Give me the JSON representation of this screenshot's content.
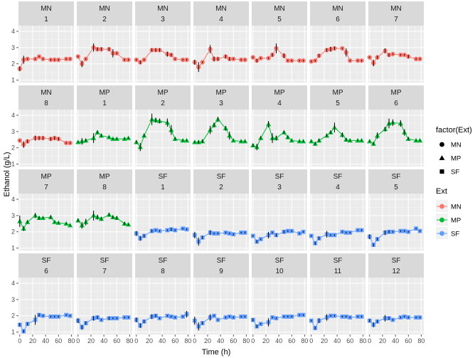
{
  "chart_data": {
    "type": "line",
    "xlabel": "Time (h)",
    "ylabel": "Ethanol (g/L)",
    "xlim": [
      -2,
      84
    ],
    "ylim": [
      0.85,
      4.35
    ],
    "xticks": [
      0,
      20,
      40,
      60,
      80
    ],
    "xtick_labels": [
      "0",
      "20",
      "40",
      "60",
      "80"
    ],
    "yticks": [
      1,
      2,
      3,
      4
    ],
    "ytick_labels": [
      "1",
      "2",
      "3",
      "4"
    ],
    "grid": true,
    "x": [
      0,
      6,
      12,
      24,
      30,
      36,
      48,
      54,
      60,
      72,
      78
    ],
    "ext_colors": {
      "MN": "#F8766D",
      "MP": "#00BA38",
      "SF": "#619CFF"
    },
    "ext_shapes": {
      "MN": "circle",
      "MP": "triangle",
      "SF": "square"
    },
    "legend": {
      "placement": "right",
      "shape_title": "factor(Ext)",
      "color_title": "Ext",
      "entries": [
        "MN",
        "MP",
        "SF"
      ]
    },
    "panels": [
      {
        "ext": "MN",
        "rep": "1",
        "y": [
          1.7,
          2.25,
          2.3,
          2.3,
          2.45,
          2.3,
          2.25,
          2.25,
          2.25,
          2.3,
          2.3
        ],
        "err": [
          0.15,
          0.25,
          0.05,
          0.05,
          0.05,
          0.05,
          0.05,
          0.05,
          0.05,
          0.05,
          0.05
        ]
      },
      {
        "ext": "MN",
        "rep": "2",
        "y": [
          2.45,
          2.0,
          2.3,
          3.0,
          2.9,
          2.9,
          2.9,
          2.65,
          2.65,
          2.25,
          2.25
        ],
        "err": [
          0.05,
          0.2,
          0.05,
          0.25,
          0.1,
          0.1,
          0.1,
          0.25,
          0.05,
          0.05,
          0.05
        ]
      },
      {
        "ext": "MN",
        "rep": "3",
        "y": [
          2.25,
          2.1,
          2.25,
          2.85,
          2.85,
          2.85,
          2.6,
          2.55,
          2.3,
          2.25,
          2.25
        ],
        "err": [
          0.05,
          0.1,
          0.05,
          0.1,
          0.1,
          0.1,
          0.15,
          0.1,
          0.05,
          0.05,
          0.05
        ]
      },
      {
        "ext": "MN",
        "rep": "4",
        "y": [
          2.1,
          1.8,
          2.1,
          2.9,
          2.3,
          2.3,
          2.45,
          2.3,
          2.3,
          2.25,
          2.25
        ],
        "err": [
          0.15,
          0.3,
          0.05,
          0.25,
          0.15,
          0.1,
          0.1,
          0.1,
          0.05,
          0.05,
          0.05
        ]
      },
      {
        "ext": "MN",
        "rep": "5",
        "y": [
          2.4,
          2.2,
          2.35,
          2.35,
          2.55,
          2.95,
          2.5,
          2.2,
          2.2,
          2.2,
          2.2
        ],
        "err": [
          0.05,
          0.1,
          0.05,
          0.05,
          0.1,
          0.3,
          0.15,
          0.05,
          0.05,
          0.05,
          0.05
        ]
      },
      {
        "ext": "MN",
        "rep": "6",
        "y": [
          2.15,
          2.2,
          2.5,
          2.85,
          2.9,
          2.95,
          2.95,
          2.7,
          2.2,
          2.2,
          2.2
        ],
        "err": [
          0.05,
          0.05,
          0.1,
          0.1,
          0.15,
          0.1,
          0.05,
          0.25,
          0.05,
          0.05,
          0.05
        ]
      },
      {
        "ext": "MN",
        "rep": "7",
        "y": [
          2.4,
          2.05,
          2.4,
          2.8,
          2.55,
          2.6,
          2.55,
          2.55,
          2.45,
          2.3,
          2.3
        ],
        "err": [
          0.05,
          0.2,
          0.1,
          0.15,
          0.1,
          0.05,
          0.05,
          0.05,
          0.1,
          0.05,
          0.05
        ]
      },
      {
        "ext": "MN",
        "rep": "8",
        "y": [
          2.45,
          2.2,
          2.4,
          2.6,
          2.6,
          2.6,
          2.55,
          2.6,
          2.55,
          2.3,
          2.3
        ],
        "err": [
          0.05,
          0.2,
          0.1,
          0.15,
          0.1,
          0.1,
          0.1,
          0.1,
          0.1,
          0.05,
          0.05
        ]
      },
      {
        "ext": "MP",
        "rep": "1",
        "y": [
          2.35,
          2.4,
          2.45,
          2.6,
          2.95,
          2.75,
          2.65,
          2.55,
          2.55,
          2.55,
          2.6
        ],
        "err": [
          0.05,
          0.2,
          0.1,
          0.3,
          0.1,
          0.1,
          0.05,
          0.05,
          0.05,
          0.05,
          0.05
        ]
      },
      {
        "ext": "MP",
        "rep": "2",
        "y": [
          2.35,
          2.05,
          2.75,
          3.75,
          3.7,
          3.65,
          3.55,
          3.1,
          2.55,
          2.45,
          2.45
        ],
        "err": [
          0.1,
          0.25,
          0.1,
          0.35,
          0.15,
          0.15,
          0.25,
          0.3,
          0.1,
          0.05,
          0.05
        ]
      },
      {
        "ext": "MP",
        "rep": "3",
        "y": [
          2.35,
          2.35,
          2.4,
          3.1,
          3.4,
          3.75,
          3.2,
          2.75,
          2.45,
          2.4,
          2.4
        ],
        "err": [
          0.05,
          0.1,
          0.1,
          0.25,
          0.15,
          0.15,
          0.15,
          0.25,
          0.05,
          0.05,
          0.05
        ]
      },
      {
        "ext": "MP",
        "rep": "4",
        "y": [
          2.15,
          2.05,
          2.6,
          3.45,
          2.6,
          2.6,
          2.95,
          2.65,
          2.45,
          2.4,
          2.4
        ],
        "err": [
          0.1,
          0.2,
          0.1,
          0.2,
          0.3,
          0.15,
          0.1,
          0.1,
          0.05,
          0.05,
          0.05
        ]
      },
      {
        "ext": "MP",
        "rep": "5",
        "y": [
          2.4,
          2.25,
          2.45,
          2.75,
          2.95,
          3.25,
          2.8,
          2.5,
          2.45,
          2.45,
          2.45
        ],
        "err": [
          0.05,
          0.1,
          0.1,
          0.1,
          0.1,
          0.3,
          0.15,
          0.1,
          0.05,
          0.05,
          0.05
        ]
      },
      {
        "ext": "MP",
        "rep": "6",
        "y": [
          2.4,
          2.25,
          2.75,
          3.15,
          3.5,
          3.55,
          3.5,
          2.95,
          2.55,
          2.45,
          2.45
        ],
        "err": [
          0.05,
          0.1,
          0.2,
          0.15,
          0.3,
          0.2,
          0.2,
          0.2,
          0.1,
          0.05,
          0.05
        ]
      },
      {
        "ext": "MP",
        "rep": "7",
        "y": [
          2.65,
          2.2,
          2.6,
          3.0,
          2.85,
          2.85,
          2.9,
          2.6,
          2.55,
          2.5,
          2.4
        ],
        "err": [
          0.35,
          0.15,
          0.1,
          0.15,
          0.1,
          0.05,
          0.1,
          0.05,
          0.05,
          0.05,
          0.05
        ]
      },
      {
        "ext": "MP",
        "rep": "8",
        "y": [
          2.7,
          2.4,
          2.6,
          3.0,
          2.9,
          2.8,
          3.05,
          2.9,
          2.85,
          2.5,
          2.45
        ],
        "err": [
          0.1,
          0.2,
          0.2,
          0.3,
          0.15,
          0.1,
          0.1,
          0.1,
          0.1,
          0.1,
          0.05
        ]
      },
      {
        "ext": "SF",
        "rep": "1",
        "y": [
          1.9,
          1.6,
          1.75,
          2.05,
          2.1,
          2.05,
          2.1,
          2.15,
          2.1,
          2.2,
          2.15
        ],
        "err": [
          0.15,
          0.15,
          0.1,
          0.1,
          0.05,
          0.05,
          0.05,
          0.1,
          0.05,
          0.05,
          0.05
        ]
      },
      {
        "ext": "SF",
        "rep": "2",
        "y": [
          1.8,
          1.4,
          1.65,
          1.95,
          1.9,
          1.9,
          1.95,
          1.9,
          1.85,
          1.95,
          1.95
        ],
        "err": [
          0.2,
          0.25,
          0.1,
          0.15,
          0.05,
          0.05,
          0.05,
          0.05,
          0.05,
          0.05,
          0.05
        ]
      },
      {
        "ext": "SF",
        "rep": "3",
        "y": [
          1.75,
          1.4,
          1.55,
          1.8,
          1.95,
          1.8,
          2.0,
          2.05,
          2.05,
          1.9,
          2.0
        ],
        "err": [
          0.05,
          0.1,
          0.05,
          0.2,
          0.05,
          0.1,
          0.1,
          0.05,
          0.05,
          0.05,
          0.05
        ]
      },
      {
        "ext": "SF",
        "rep": "4",
        "y": [
          1.75,
          1.3,
          1.6,
          1.85,
          1.8,
          1.8,
          2.0,
          1.95,
          1.95,
          2.1,
          2.1
        ],
        "err": [
          0.05,
          0.1,
          0.1,
          0.2,
          0.05,
          0.05,
          0.05,
          0.05,
          0.05,
          0.05,
          0.05
        ]
      },
      {
        "ext": "SF",
        "rep": "5",
        "y": [
          1.7,
          1.2,
          1.55,
          1.95,
          2.0,
          2.0,
          2.05,
          2.05,
          2.0,
          2.2,
          2.05
        ],
        "err": [
          0.15,
          0.1,
          0.1,
          0.15,
          0.1,
          0.05,
          0.05,
          0.05,
          0.05,
          0.05,
          0.05
        ]
      },
      {
        "ext": "SF",
        "rep": "6",
        "y": [
          1.45,
          1.05,
          1.5,
          1.75,
          2.05,
          2.0,
          1.95,
          1.95,
          1.95,
          2.05,
          2.0
        ],
        "err": [
          0.1,
          0.1,
          0.1,
          0.3,
          0.1,
          0.05,
          0.05,
          0.05,
          0.05,
          0.05,
          0.05
        ]
      },
      {
        "ext": "SF",
        "rep": "7",
        "y": [
          1.7,
          1.3,
          1.55,
          1.85,
          1.9,
          1.75,
          1.85,
          1.85,
          1.85,
          1.9,
          1.9
        ],
        "err": [
          0.15,
          0.15,
          0.1,
          0.15,
          0.1,
          0.05,
          0.1,
          0.05,
          0.05,
          0.05,
          0.05
        ]
      },
      {
        "ext": "SF",
        "rep": "8",
        "y": [
          1.75,
          1.4,
          1.65,
          1.95,
          2.0,
          1.85,
          2.0,
          1.95,
          1.9,
          1.95,
          2.1
        ],
        "err": [
          0.15,
          0.15,
          0.1,
          0.15,
          0.1,
          0.05,
          0.05,
          0.05,
          0.05,
          0.05,
          0.2
        ]
      },
      {
        "ext": "SF",
        "rep": "9",
        "y": [
          1.7,
          1.35,
          1.55,
          1.9,
          2.0,
          1.75,
          1.9,
          1.95,
          1.9,
          1.95,
          1.95
        ],
        "err": [
          0.25,
          0.25,
          0.1,
          0.2,
          0.05,
          0.05,
          0.05,
          0.05,
          0.05,
          0.05,
          0.05
        ]
      },
      {
        "ext": "SF",
        "rep": "10",
        "y": [
          1.75,
          1.35,
          1.5,
          1.6,
          1.9,
          1.85,
          1.95,
          1.95,
          1.95,
          2.05,
          2.05
        ],
        "err": [
          0.1,
          0.1,
          0.05,
          0.25,
          0.05,
          0.05,
          0.05,
          0.05,
          0.05,
          0.05,
          0.05
        ]
      },
      {
        "ext": "SF",
        "rep": "11",
        "y": [
          1.7,
          1.25,
          1.7,
          1.9,
          2.0,
          2.0,
          1.95,
          1.95,
          1.9,
          1.95,
          1.95
        ],
        "err": [
          0.05,
          0.1,
          0.15,
          0.2,
          0.05,
          0.05,
          0.05,
          0.05,
          0.05,
          0.05,
          0.05
        ]
      },
      {
        "ext": "SF",
        "rep": "12",
        "y": [
          1.7,
          1.45,
          1.65,
          1.85,
          1.85,
          1.75,
          1.9,
          1.95,
          1.9,
          1.9,
          1.9
        ],
        "err": [
          0.1,
          0.15,
          0.1,
          0.2,
          0.1,
          0.05,
          0.05,
          0.05,
          0.05,
          0.05,
          0.05
        ]
      }
    ]
  }
}
